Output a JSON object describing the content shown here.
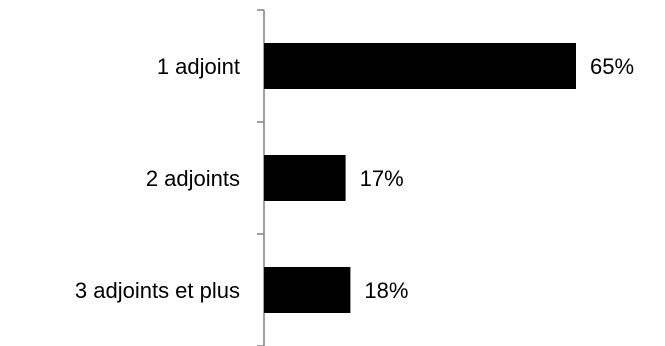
{
  "chart_data": {
    "type": "bar",
    "orientation": "horizontal",
    "categories": [
      "1 adjoint",
      "2 adjoints",
      "3 adjoints et plus"
    ],
    "values": [
      65,
      17,
      18
    ],
    "value_labels": [
      "65%",
      "17%",
      "18%"
    ],
    "unit": "%",
    "bar_color": "#000000",
    "axis_color": "#808080",
    "grid": false,
    "legend": "none"
  }
}
